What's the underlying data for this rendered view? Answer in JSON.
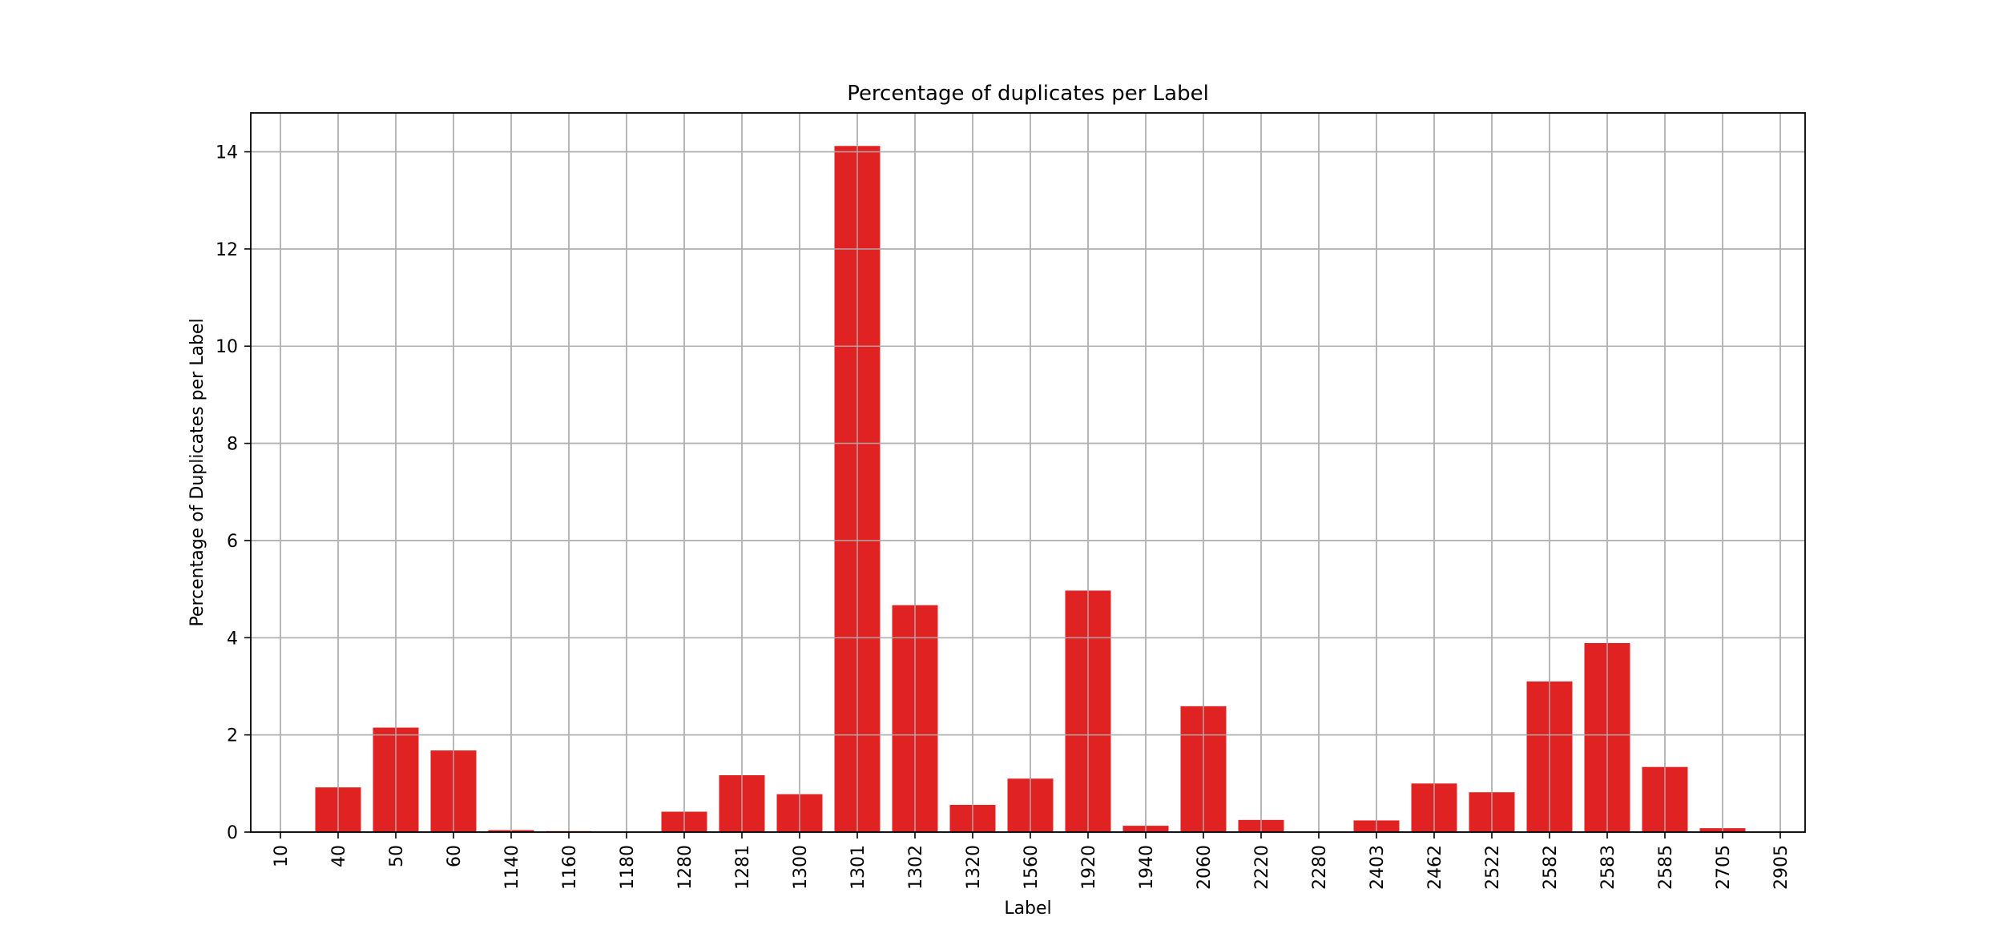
{
  "colors": {
    "bar": "#e02222",
    "grid": "#b0b0b0",
    "axis": "#000000",
    "background": "#ffffff"
  },
  "chart_data": {
    "type": "bar",
    "title": "Percentage of duplicates per Label",
    "xlabel": "Label",
    "ylabel": "Percentage of Duplicates per Label",
    "categories": [
      "10",
      "40",
      "50",
      "60",
      "1140",
      "1160",
      "1180",
      "1280",
      "1281",
      "1300",
      "1301",
      "1302",
      "1320",
      "1560",
      "1920",
      "1940",
      "2060",
      "2220",
      "2280",
      "2403",
      "2462",
      "2522",
      "2582",
      "2583",
      "2585",
      "2705",
      "2905"
    ],
    "values": [
      0.0,
      0.92,
      2.15,
      1.68,
      0.04,
      0.02,
      0.0,
      0.42,
      1.17,
      0.78,
      14.12,
      4.67,
      0.56,
      1.1,
      4.97,
      0.13,
      2.59,
      0.25,
      0.0,
      0.24,
      1.0,
      0.82,
      3.1,
      3.89,
      1.34,
      0.08,
      0.0
    ],
    "yticks": [
      0,
      2,
      4,
      6,
      8,
      10,
      12,
      14
    ],
    "ylim": [
      0,
      14.8
    ],
    "grid": true,
    "legend": "none"
  }
}
